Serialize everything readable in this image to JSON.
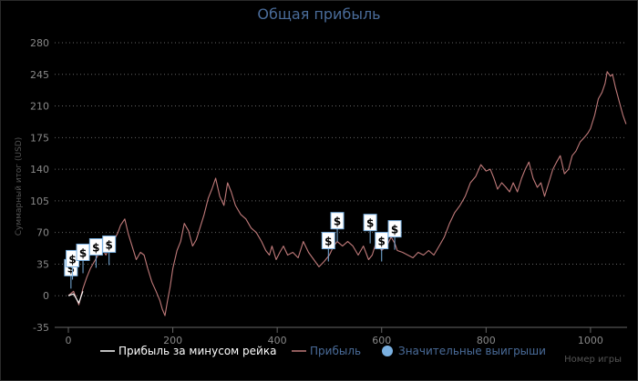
{
  "chart_data": {
    "type": "line",
    "title": "Общая прибыль",
    "xlabel": "Номер игры",
    "ylabel": "Суммарный итог (USD)",
    "xlim": [
      0,
      1070
    ],
    "ylim": [
      -35,
      280
    ],
    "x_ticks": [
      "0",
      "200",
      "400",
      "600",
      "800",
      "1000"
    ],
    "y_ticks": [
      "-35",
      "0",
      "35",
      "70",
      "105",
      "140",
      "175",
      "210",
      "245",
      "280"
    ],
    "grid": "horizontal dotted",
    "legend_position": "bottom",
    "legend": [
      {
        "name": "Прибыль за минусом рейка",
        "color": "#ffffff"
      },
      {
        "name": "Прибыль",
        "color": "#c07a7a"
      },
      {
        "name": "Значительные выигрыши",
        "color": "#7ab0e0"
      }
    ],
    "series": [
      {
        "name": "Прибыль",
        "color": "#c07a7a",
        "points": [
          [
            0,
            0
          ],
          [
            10,
            5
          ],
          [
            20,
            -10
          ],
          [
            28,
            8
          ],
          [
            35,
            20
          ],
          [
            42,
            30
          ],
          [
            50,
            38
          ],
          [
            58,
            46
          ],
          [
            65,
            52
          ],
          [
            72,
            45
          ],
          [
            80,
            55
          ],
          [
            88,
            62
          ],
          [
            95,
            70
          ],
          [
            100,
            78
          ],
          [
            108,
            85
          ],
          [
            115,
            68
          ],
          [
            122,
            55
          ],
          [
            130,
            40
          ],
          [
            138,
            48
          ],
          [
            145,
            45
          ],
          [
            152,
            30
          ],
          [
            160,
            15
          ],
          [
            168,
            5
          ],
          [
            175,
            -5
          ],
          [
            180,
            -15
          ],
          [
            185,
            -22
          ],
          [
            190,
            -5
          ],
          [
            195,
            10
          ],
          [
            200,
            30
          ],
          [
            208,
            50
          ],
          [
            215,
            60
          ],
          [
            222,
            80
          ],
          [
            230,
            72
          ],
          [
            238,
            55
          ],
          [
            245,
            62
          ],
          [
            252,
            75
          ],
          [
            260,
            90
          ],
          [
            268,
            108
          ],
          [
            275,
            118
          ],
          [
            282,
            130
          ],
          [
            290,
            110
          ],
          [
            298,
            100
          ],
          [
            305,
            125
          ],
          [
            312,
            115
          ],
          [
            320,
            100
          ],
          [
            330,
            90
          ],
          [
            340,
            85
          ],
          [
            350,
            75
          ],
          [
            360,
            70
          ],
          [
            370,
            60
          ],
          [
            378,
            50
          ],
          [
            385,
            45
          ],
          [
            390,
            55
          ],
          [
            398,
            40
          ],
          [
            405,
            48
          ],
          [
            412,
            55
          ],
          [
            420,
            45
          ],
          [
            430,
            48
          ],
          [
            440,
            42
          ],
          [
            450,
            60
          ],
          [
            460,
            48
          ],
          [
            470,
            40
          ],
          [
            480,
            32
          ],
          [
            490,
            38
          ],
          [
            500,
            45
          ],
          [
            508,
            55
          ],
          [
            515,
            60
          ],
          [
            525,
            55
          ],
          [
            535,
            60
          ],
          [
            545,
            55
          ],
          [
            555,
            45
          ],
          [
            565,
            55
          ],
          [
            575,
            40
          ],
          [
            582,
            45
          ],
          [
            590,
            60
          ],
          [
            600,
            50
          ],
          [
            610,
            55
          ],
          [
            618,
            65
          ],
          [
            625,
            58
          ],
          [
            630,
            50
          ],
          [
            640,
            48
          ],
          [
            650,
            45
          ],
          [
            660,
            42
          ],
          [
            670,
            48
          ],
          [
            680,
            45
          ],
          [
            690,
            50
          ],
          [
            700,
            45
          ],
          [
            710,
            55
          ],
          [
            720,
            65
          ],
          [
            730,
            80
          ],
          [
            740,
            92
          ],
          [
            750,
            100
          ],
          [
            760,
            110
          ],
          [
            770,
            125
          ],
          [
            780,
            132
          ],
          [
            790,
            145
          ],
          [
            800,
            138
          ],
          [
            808,
            140
          ],
          [
            815,
            130
          ],
          [
            822,
            118
          ],
          [
            830,
            125
          ],
          [
            838,
            120
          ],
          [
            845,
            115
          ],
          [
            852,
            125
          ],
          [
            860,
            115
          ],
          [
            868,
            130
          ],
          [
            875,
            140
          ],
          [
            882,
            148
          ],
          [
            890,
            130
          ],
          [
            898,
            120
          ],
          [
            905,
            125
          ],
          [
            912,
            110
          ],
          [
            920,
            125
          ],
          [
            928,
            140
          ],
          [
            935,
            148
          ],
          [
            942,
            155
          ],
          [
            950,
            135
          ],
          [
            958,
            140
          ],
          [
            965,
            155
          ],
          [
            972,
            160
          ],
          [
            980,
            170
          ],
          [
            988,
            175
          ],
          [
            995,
            180
          ],
          [
            1000,
            185
          ],
          [
            1008,
            200
          ],
          [
            1015,
            218
          ],
          [
            1022,
            225
          ],
          [
            1028,
            235
          ],
          [
            1032,
            248
          ],
          [
            1038,
            243
          ],
          [
            1042,
            245
          ],
          [
            1048,
            230
          ],
          [
            1055,
            215
          ],
          [
            1062,
            200
          ],
          [
            1068,
            190
          ]
        ]
      },
      {
        "name": "Прибыль за минусом рейка",
        "color": "#ffffff",
        "points": [
          [
            0,
            0
          ],
          [
            10,
            2
          ],
          [
            20,
            -8
          ],
          [
            28,
            5
          ]
        ]
      }
    ],
    "significant_wins": [
      {
        "x": 5,
        "y": 22,
        "label": "$"
      },
      {
        "x": 8,
        "y": 32,
        "label": "$"
      },
      {
        "x": 28,
        "y": 39,
        "label": "$"
      },
      {
        "x": 53,
        "y": 45,
        "label": "$"
      },
      {
        "x": 78,
        "y": 48,
        "label": "$"
      },
      {
        "x": 498,
        "y": 52,
        "label": "$"
      },
      {
        "x": 515,
        "y": 74,
        "label": "$"
      },
      {
        "x": 578,
        "y": 72,
        "label": "$"
      },
      {
        "x": 600,
        "y": 52,
        "label": "$"
      },
      {
        "x": 625,
        "y": 65,
        "label": "$"
      }
    ]
  }
}
